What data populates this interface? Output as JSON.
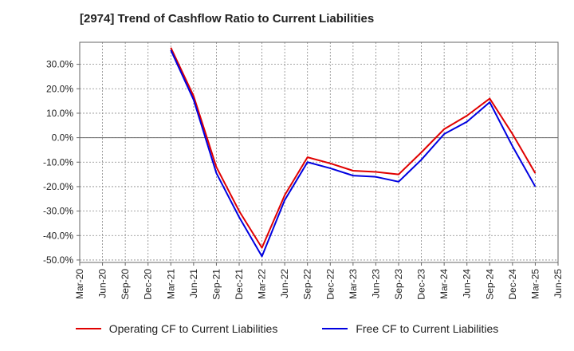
{
  "chart_data": {
    "type": "line",
    "title": "[2974]  Trend of Cashflow Ratio to Current Liabilities",
    "xlabel": "",
    "ylabel": "",
    "x_ticks": [
      "Mar-20",
      "Jun-20",
      "Sep-20",
      "Dec-20",
      "Mar-21",
      "Jun-21",
      "Sep-21",
      "Dec-21",
      "Mar-22",
      "Jun-22",
      "Sep-22",
      "Dec-22",
      "Mar-23",
      "Jun-23",
      "Sep-23",
      "Dec-23",
      "Mar-24",
      "Jun-24",
      "Sep-24",
      "Dec-24",
      "Mar-25",
      "Jun-25"
    ],
    "y_ticks": [
      "30.0%",
      "20.0%",
      "10.0%",
      "0.0%",
      "-10.0%",
      "-20.0%",
      "-30.0%",
      "-40.0%",
      "-50.0%"
    ],
    "y_tick_values": [
      30,
      20,
      10,
      0,
      -10,
      -20,
      -30,
      -40,
      -50
    ],
    "ylim": [
      -51,
      39
    ],
    "grid": true,
    "legend_position": "bottom",
    "x": [
      "Mar-21",
      "Jun-21",
      "Sep-21",
      "Dec-21",
      "Mar-22",
      "Jun-22",
      "Sep-22",
      "Dec-22",
      "Mar-23",
      "Jun-23",
      "Sep-23",
      "Dec-23",
      "Mar-24",
      "Jun-24",
      "Sep-24",
      "Dec-24",
      "Mar-25"
    ],
    "series": [
      {
        "name": "Operating CF to Current Liabilities",
        "color": "#e00000",
        "values": [
          36.8,
          17.0,
          -12.0,
          -30.0,
          -45.0,
          -23.5,
          -8.0,
          -10.5,
          -13.5,
          -14.0,
          -15.0,
          -6.0,
          3.5,
          9.0,
          16.0,
          1.5,
          -14.5
        ]
      },
      {
        "name": "Free CF to Current Liabilities",
        "color": "#0000e0",
        "values": [
          35.8,
          15.5,
          -14.5,
          -32.5,
          -48.5,
          -25.5,
          -10.0,
          -12.5,
          -15.5,
          -16.0,
          -18.0,
          -9.0,
          1.5,
          6.5,
          14.5,
          -3.5,
          -20.0
        ]
      }
    ]
  }
}
